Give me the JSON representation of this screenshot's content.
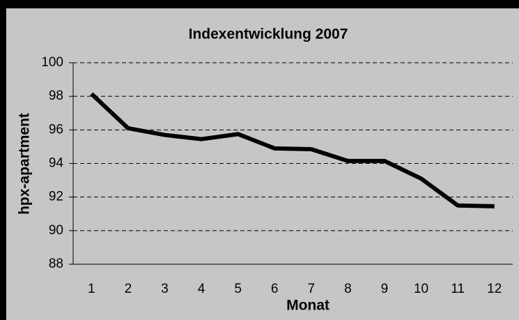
{
  "chart_data": {
    "type": "line",
    "title": "Indexentwicklung 2007",
    "x_label": "Monat",
    "y_label": "hpx-apartment",
    "categories": [
      1,
      2,
      3,
      4,
      5,
      6,
      7,
      8,
      9,
      10,
      11,
      12
    ],
    "values": [
      98.15,
      96.1,
      95.7,
      95.45,
      95.75,
      94.9,
      94.85,
      94.15,
      94.15,
      93.1,
      91.5,
      91.45
    ],
    "color": "#000000",
    "ylim": [
      88,
      100
    ],
    "yticks": [
      88,
      90,
      92,
      94,
      96,
      98,
      100
    ],
    "grid": true
  }
}
